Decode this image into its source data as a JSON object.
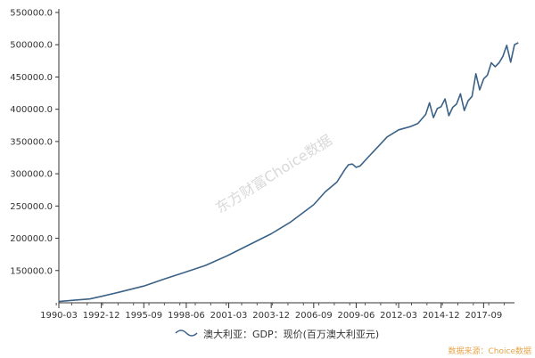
{
  "chart_data": {
    "type": "line",
    "title": "",
    "xlabel": "",
    "ylabel": "",
    "x_ticks": [
      "1990-03",
      "1992-12",
      "1995-09",
      "1998-06",
      "2001-03",
      "2003-12",
      "2006-09",
      "2009-06",
      "2012-03",
      "2014-12",
      "2017-09"
    ],
    "y_ticks": [
      "150000.0",
      "200000.0",
      "250000.0",
      "300000.0",
      "350000.0",
      "400000.0",
      "450000.0",
      "500000.0",
      "550000.0"
    ],
    "ylim": [
      100000,
      550000
    ],
    "xlim": [
      "1990-03",
      "2019-09"
    ],
    "grid": false,
    "legend_position": "bottom",
    "series": [
      {
        "name": "澳大利亚：GDP：现价(百万澳大利亚元)",
        "color": "#3b6286",
        "points": [
          [
            "1990-03",
            102000
          ],
          [
            "1991-03",
            104000
          ],
          [
            "1992-03",
            106000
          ],
          [
            "1992-12",
            110000
          ],
          [
            "1994-03",
            117000
          ],
          [
            "1995-09",
            126000
          ],
          [
            "1997-01",
            137000
          ],
          [
            "1998-06",
            148000
          ],
          [
            "1999-09",
            158000
          ],
          [
            "2001-03",
            174000
          ],
          [
            "2002-06",
            189000
          ],
          [
            "2003-12",
            207000
          ],
          [
            "2005-03",
            225000
          ],
          [
            "2006-09",
            252000
          ],
          [
            "2007-06",
            272000
          ],
          [
            "2008-03",
            287000
          ],
          [
            "2008-09",
            306000
          ],
          [
            "2008-12",
            314000
          ],
          [
            "2009-03",
            315000
          ],
          [
            "2009-06",
            310000
          ],
          [
            "2009-09",
            312000
          ],
          [
            "2010-03",
            325000
          ],
          [
            "2010-12",
            344000
          ],
          [
            "2011-06",
            357000
          ],
          [
            "2012-03",
            368000
          ],
          [
            "2012-12",
            373000
          ],
          [
            "2013-06",
            378000
          ],
          [
            "2013-12",
            392000
          ],
          [
            "2014-03",
            410000
          ],
          [
            "2014-06",
            387000
          ],
          [
            "2014-09",
            401000
          ],
          [
            "2014-12",
            404000
          ],
          [
            "2015-03",
            416000
          ],
          [
            "2015-06",
            390000
          ],
          [
            "2015-09",
            403000
          ],
          [
            "2015-12",
            408000
          ],
          [
            "2016-03",
            424000
          ],
          [
            "2016-06",
            398000
          ],
          [
            "2016-09",
            413000
          ],
          [
            "2016-12",
            420000
          ],
          [
            "2017-03",
            455000
          ],
          [
            "2017-06",
            430000
          ],
          [
            "2017-09",
            447000
          ],
          [
            "2017-12",
            453000
          ],
          [
            "2018-03",
            472000
          ],
          [
            "2018-06",
            466000
          ],
          [
            "2018-09",
            472000
          ],
          [
            "2018-12",
            482000
          ],
          [
            "2019-03",
            499000
          ],
          [
            "2019-06",
            473000
          ],
          [
            "2019-09",
            500000
          ],
          [
            "2019-12",
            503000
          ]
        ]
      }
    ],
    "watermark": "东方财富Choice数据",
    "source": "数据来源：Choice数据"
  }
}
